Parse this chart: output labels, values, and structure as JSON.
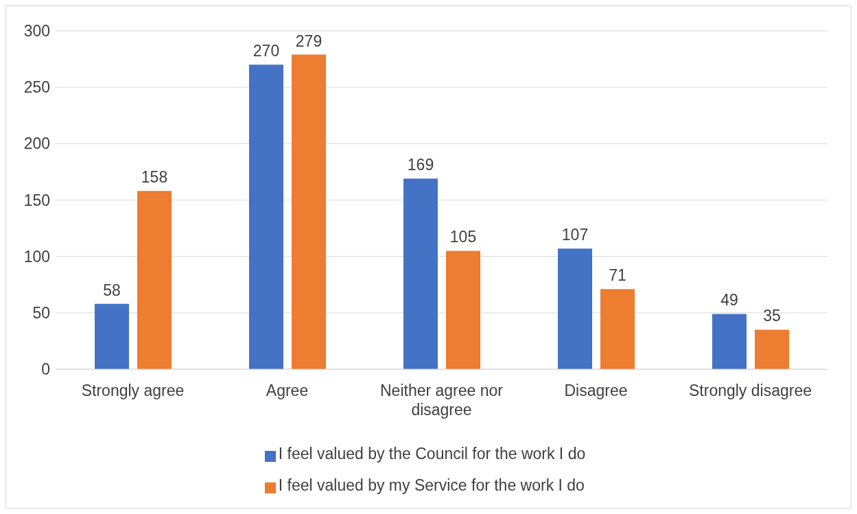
{
  "chart_data": {
    "type": "bar",
    "categories": [
      "Strongly agree",
      "Agree",
      "Neither agree nor disagree",
      "Disagree",
      "Strongly disagree"
    ],
    "series": [
      {
        "name": "I feel valued by the Council for the work I do",
        "color": "#4472c4",
        "values": [
          58,
          270,
          169,
          107,
          49
        ]
      },
      {
        "name": "I feel valued by my Service for the work I do",
        "color": "#ed7d31",
        "values": [
          158,
          279,
          105,
          71,
          35
        ]
      }
    ],
    "ylim": [
      0,
      300
    ],
    "yticks": [
      0,
      50,
      100,
      150,
      200,
      250,
      300
    ],
    "grid": "y",
    "legend": "bottom",
    "data_labels": true
  }
}
